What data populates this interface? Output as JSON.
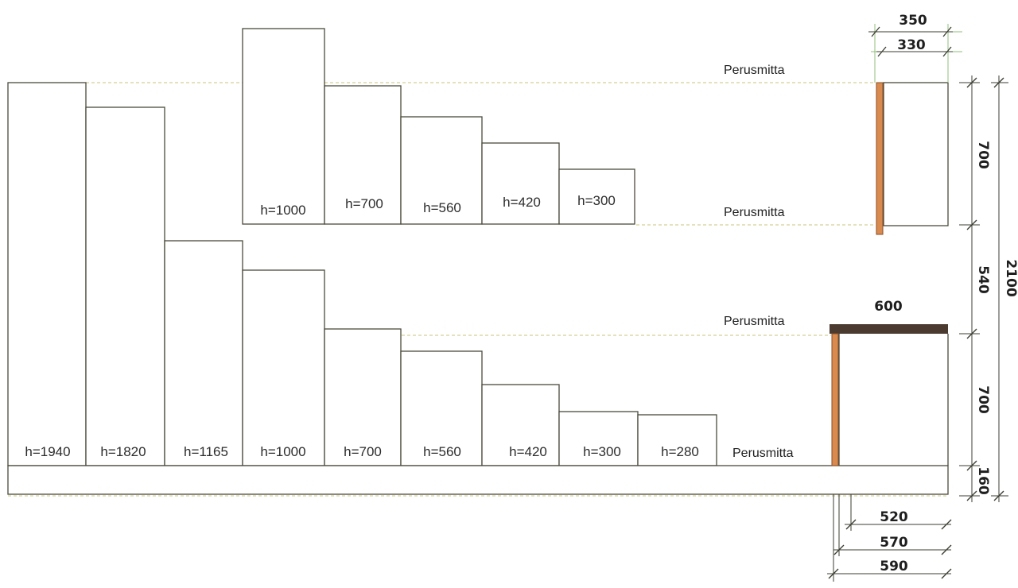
{
  "references": {
    "label_1": "Perusmitta",
    "label_2": "Perusmitta",
    "label_3": "Perusmitta",
    "label_4": "Perusmitta"
  },
  "wall_cabinets": [
    {
      "label": "h=1000",
      "height_mm": 1000
    },
    {
      "label": "h=700",
      "height_mm": 700
    },
    {
      "label": "h=560",
      "height_mm": 560
    },
    {
      "label": "h=420",
      "height_mm": 420
    },
    {
      "label": "h=300",
      "height_mm": 300
    }
  ],
  "base_cabinets": [
    {
      "label": "h=1940",
      "height_mm": 1940
    },
    {
      "label": "h=1820",
      "height_mm": 1820
    },
    {
      "label": "h=1165",
      "height_mm": 1165
    },
    {
      "label": "h=1000",
      "height_mm": 1000
    },
    {
      "label": "h=700",
      "height_mm": 700
    },
    {
      "label": "h=560",
      "height_mm": 560
    },
    {
      "label": "h=420",
      "height_mm": 420
    },
    {
      "label": "h=300",
      "height_mm": 300
    },
    {
      "label": "h=280",
      "height_mm": 280
    }
  ],
  "dimensions": {
    "wall_depth_outer": "350",
    "wall_depth_inner": "330",
    "worktop_depth": "600",
    "wall_cabinet_height": "700",
    "gap_height": "540",
    "total_height": "2100",
    "base_cabinet_height": "700",
    "plinth_height": "160",
    "base_depth_1": "520",
    "base_depth_2": "570",
    "base_depth_3": "590"
  },
  "colors": {
    "door_edge": "#d98a4e",
    "worktop": "#4a3a30",
    "guide": "#c9c47a",
    "guide_highlight": "#e02a2a"
  }
}
